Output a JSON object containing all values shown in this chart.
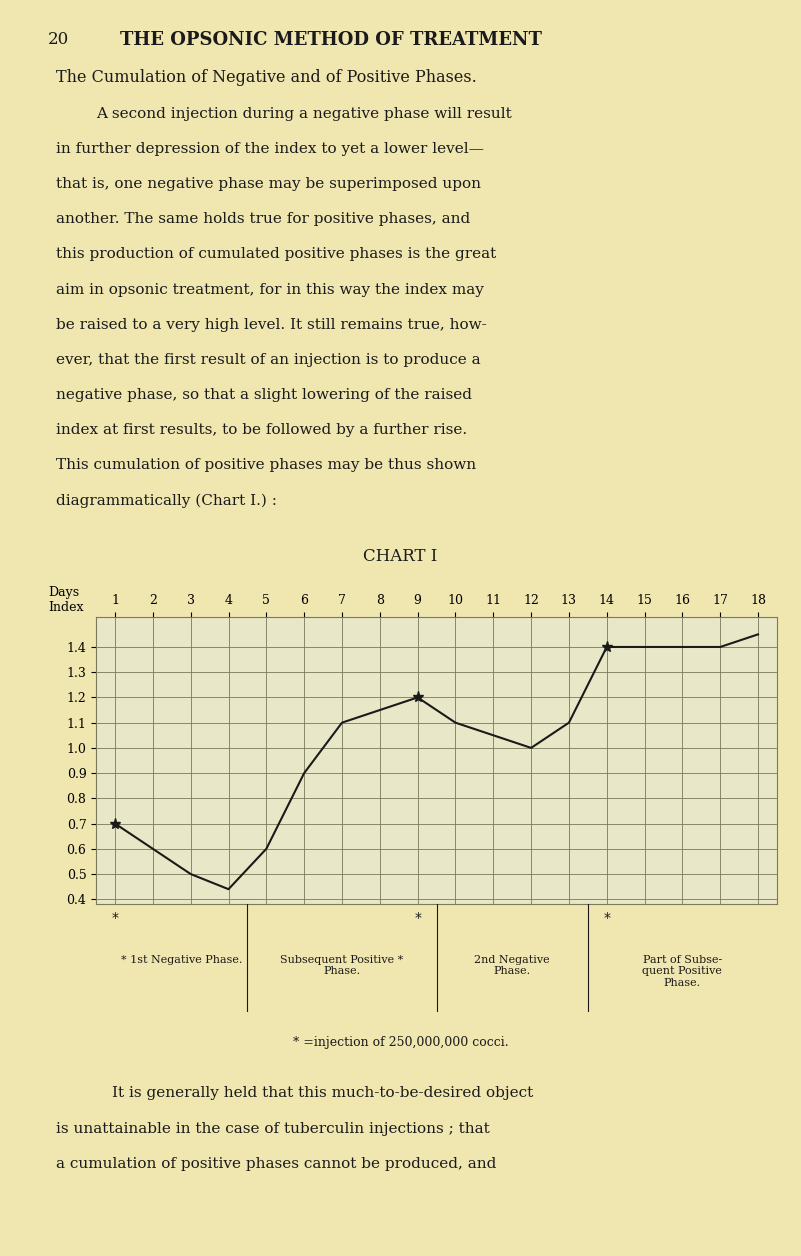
{
  "page_number": "20",
  "header": "THE OPSONIC METHOD OF TREATMENT",
  "section_title": "The Cumulation of Negative and of Positive Phases.",
  "body_text_1": "A second injection during a negative phase will result in further depression of the index to yet a lower level—that is, one negative phase may be superimposed upon another. The same holds true for positive phases, and this production of cumulated positive phases is the great aim in opsonic treatment, for in this way the index may be raised to a very high level. It still remains true, how-ever, that the first result of an injection is to produce a negative phase, so that a slight lowering of the raised index at first results, to be followed by a further rise. This cumulation of positive phases may be thus shown diagrammatically (Chart I.) :",
  "chart_title": "CHART I",
  "days": [
    1,
    2,
    3,
    4,
    5,
    6,
    7,
    8,
    9,
    10,
    11,
    12,
    13,
    14,
    15,
    16,
    17,
    18
  ],
  "index_values": [
    0.7,
    0.6,
    0.5,
    0.44,
    0.6,
    0.9,
    1.1,
    1.15,
    1.2,
    1.1,
    1.05,
    1.0,
    1.1,
    1.4,
    1.4,
    1.4,
    1.4,
    1.45
  ],
  "injection_days": [
    1,
    9,
    14
  ],
  "xlabel": "Days",
  "ylabel": "Index",
  "yticks": [
    0.4,
    0.5,
    0.6,
    0.7,
    0.8,
    0.9,
    1.0,
    1.1,
    1.2,
    1.3,
    1.4
  ],
  "ylim": [
    0.38,
    1.52
  ],
  "xlim": [
    0.5,
    18.5
  ],
  "line_color": "#1a1a1a",
  "grid_color": "#7a7a5a",
  "bg_color": "#f0e6b0",
  "chart_bg_color": "#e8e8c8",
  "annotation_1st_neg": "1st Negative Phase.",
  "annotation_sub_pos": "Subsequent Positive\nPhase.",
  "annotation_2nd_neg": "2nd Negative\nPhase.",
  "annotation_sub_pos2": "Part of Subse-\nquent Positive\nPhase.",
  "footnote": "* =injection of 250,000,000 cocci.",
  "body_text_2": "It is generally held that this much-to-be-desired object is unattainable in the case of tuberculin injections ; that a cumulation of positive phases cannot be produced, and"
}
